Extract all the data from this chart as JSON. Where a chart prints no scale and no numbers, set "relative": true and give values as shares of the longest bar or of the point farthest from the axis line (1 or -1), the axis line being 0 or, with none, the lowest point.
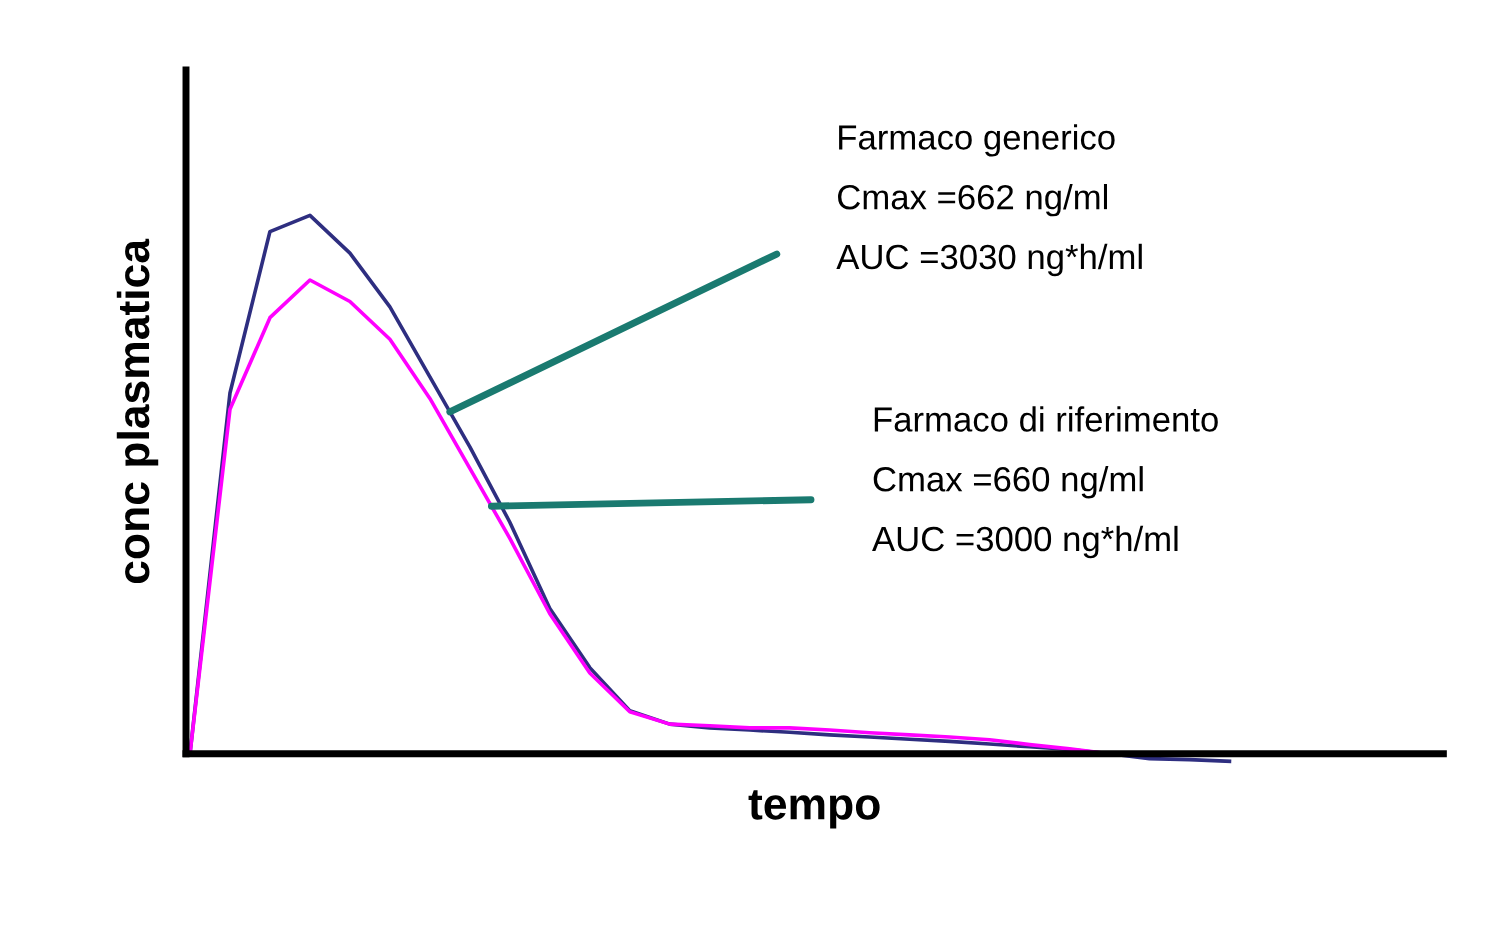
{
  "chart_data": {
    "type": "line",
    "relative": true,
    "xlabel": "tempo",
    "ylabel": "conc plasmatica",
    "categories": [
      null,
      null,
      null,
      null,
      null,
      null,
      null,
      null,
      null,
      null,
      null,
      null,
      null,
      null,
      null,
      null,
      null,
      null,
      null,
      null,
      null,
      null,
      null,
      null,
      null,
      null,
      null
    ],
    "series": [
      {
        "color": "#2e2e80",
        "values": [
          0,
          0.67,
          0.97,
          1.0,
          0.93,
          0.83,
          0.7,
          0.57,
          0.43,
          0.27,
          0.16,
          0.08,
          0.055,
          0.048,
          0.044,
          0.04,
          0.035,
          0.031,
          0.027,
          0.023,
          0.018,
          0.013,
          0.008,
          0.0,
          -0.009,
          -0.011,
          -0.014
        ]
      },
      {
        "color": "#ff00ff",
        "values": [
          0,
          0.64,
          0.81,
          0.88,
          0.84,
          0.77,
          0.66,
          0.53,
          0.4,
          0.26,
          0.15,
          0.078,
          0.055,
          0.052,
          0.048,
          0.048,
          0.044,
          0.039,
          0.035,
          0.031,
          0.026,
          0.017,
          0.009,
          0.0,
          null,
          null,
          null
        ]
      }
    ],
    "annotations": [
      "Farmaco generico",
      "Cmax =662 ng/ml",
      "AUC =3030 ng*h/ml",
      "Farmaco di riferimento",
      "Cmax =660 ng/ml",
      "AUC =3000 ng*h/ml"
    ],
    "legend": false,
    "marker": "none",
    "line_style": "solid"
  }
}
